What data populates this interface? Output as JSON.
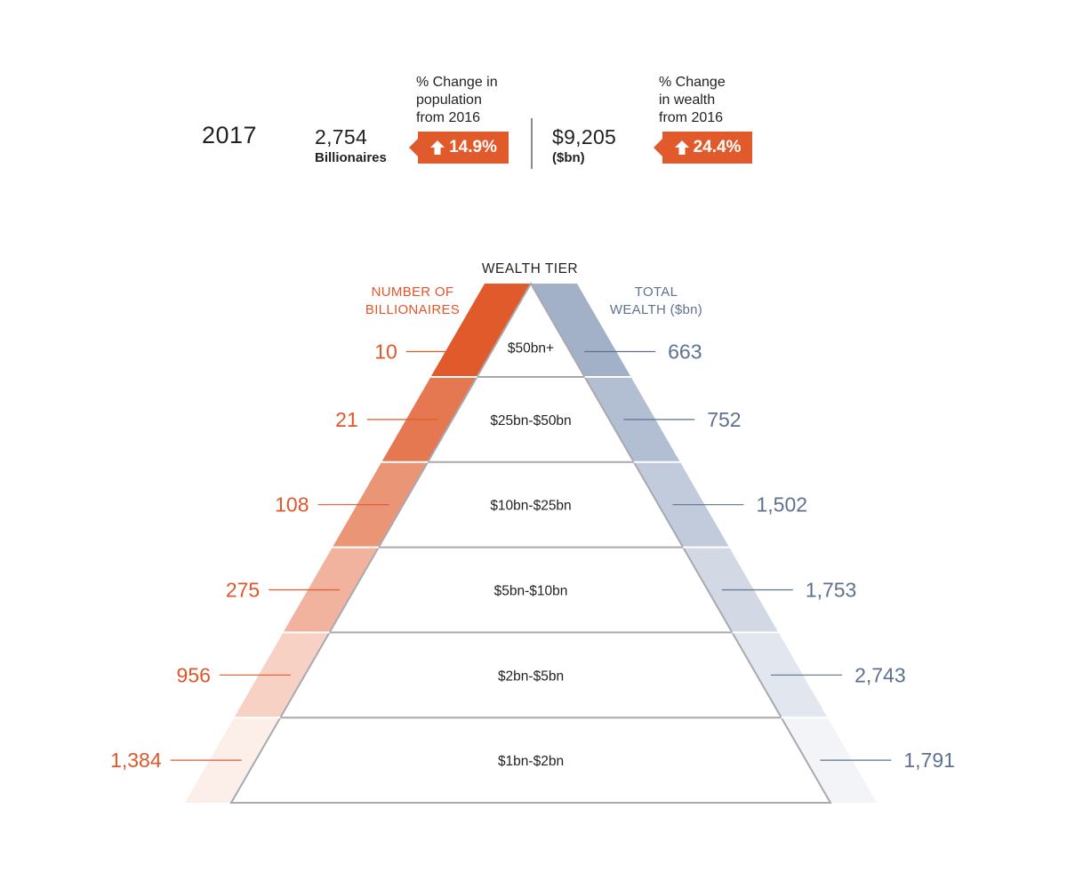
{
  "summary": {
    "year": "2017",
    "billionaires_value": "2,754",
    "billionaires_label": "Billionaires",
    "population_change_note": [
      "% Change in",
      "population",
      "from 2016"
    ],
    "population_change_value": "14.9%",
    "wealth_value": "$9,205",
    "wealth_unit": "($bn)",
    "wealth_change_note": [
      "% Change",
      "in wealth",
      "from 2016"
    ],
    "wealth_change_value": "24.4%"
  },
  "colors": {
    "orange": "#e05a2b",
    "orange_text": "#e0572a",
    "blue": "#a2b0c8",
    "blue_text": "#5e7290",
    "outline": "#a9a9ae",
    "text": "#231f20"
  },
  "chart_data": {
    "type": "table",
    "title": "WEALTH TIER",
    "left_header": [
      "NUMBER OF",
      "BILLIONAIRES"
    ],
    "right_header": [
      "TOTAL",
      "WEALTH ($bn)"
    ],
    "tiers": [
      {
        "label": "$50bn+",
        "billionaires": "10",
        "wealth": "663"
      },
      {
        "label": "$25bn-$50bn",
        "billionaires": "21",
        "wealth": "752"
      },
      {
        "label": "$10bn-$25bn",
        "billionaires": "108",
        "wealth": "1,502"
      },
      {
        "label": "$5bn-$10bn",
        "billionaires": "275",
        "wealth": "1,753"
      },
      {
        "label": "$2bn-$5bn",
        "billionaires": "956",
        "wealth": "2,743"
      },
      {
        "label": "$1bn-$2bn",
        "billionaires": "1,384",
        "wealth": "1,791"
      }
    ]
  }
}
